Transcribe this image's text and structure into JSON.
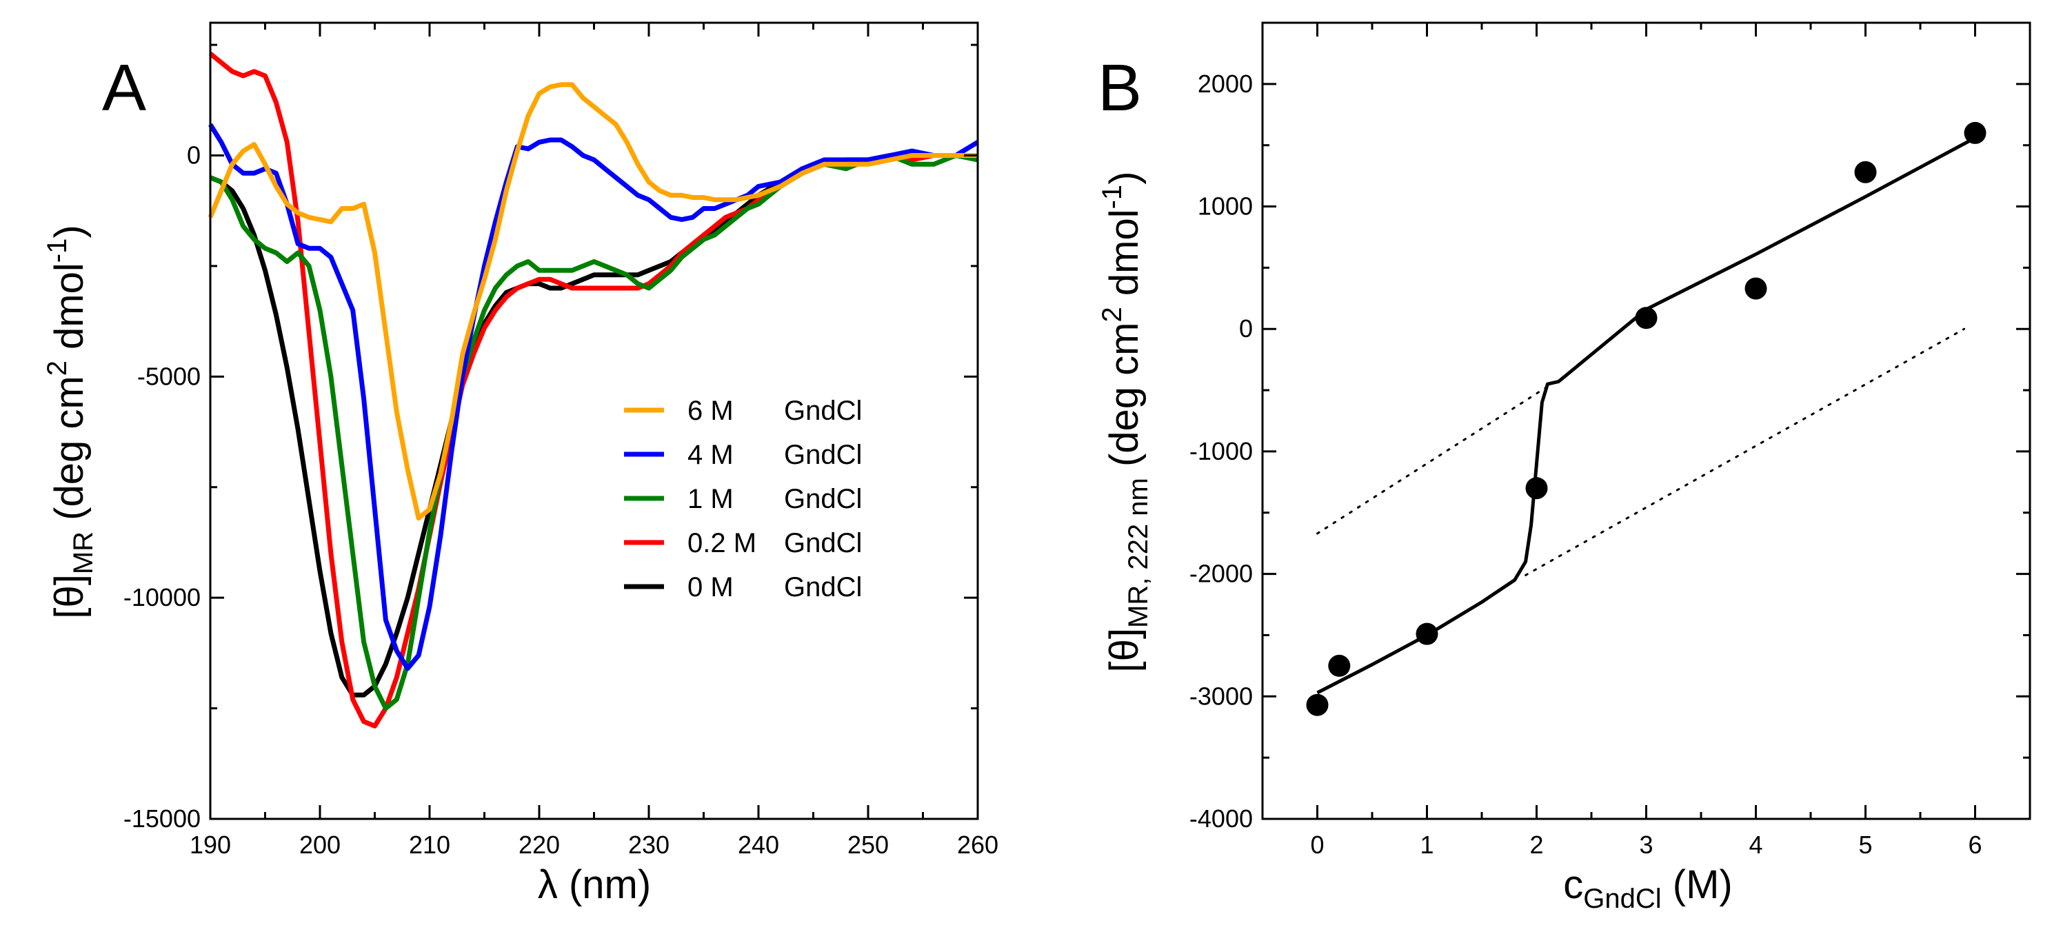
{
  "figure": {
    "panelA_letter": "A",
    "panelB_letter": "B"
  },
  "chart_data": [
    {
      "type": "line",
      "panel": "A",
      "title": "",
      "xlabel": "λ (nm)",
      "ylabel": {
        "main": "[θ]",
        "sub": "MR",
        "text": "(deg cm",
        "sup": "2",
        "text2": "dmol",
        "sup2": "-1",
        "text3": ")"
      },
      "xlim": [
        190,
        260
      ],
      "ylim": [
        -15000,
        3000
      ],
      "x_ticks": [
        190,
        200,
        210,
        220,
        230,
        240,
        250,
        260
      ],
      "y_ticks": [
        -15000,
        -10000,
        -5000,
        0
      ],
      "legend_position": "center-right",
      "series": [
        {
          "name": "6 M GndCl",
          "conc": "6 M",
          "denaturant": "GndCl",
          "color": "#ffa500",
          "x": [
            190,
            191,
            192,
            193,
            194,
            195,
            196,
            197,
            198,
            199,
            200,
            201,
            202,
            203,
            204,
            205,
            206,
            207,
            208,
            209,
            210,
            211,
            212,
            213,
            214,
            215,
            216,
            217,
            218,
            219,
            220,
            221,
            222,
            223,
            224,
            225,
            226,
            227,
            228,
            229,
            230,
            231,
            232,
            233,
            234,
            235,
            236,
            237,
            238,
            239,
            240,
            242,
            244,
            246,
            248,
            250,
            252,
            254,
            256,
            258,
            260
          ],
          "y": [
            -1400,
            -800,
            -200,
            100,
            250,
            -200,
            -700,
            -1100,
            -1300,
            -1400,
            -1450,
            -1500,
            -1200,
            -1200,
            -1100,
            -2200,
            -4000,
            -5800,
            -7100,
            -8200,
            -8000,
            -7200,
            -6000,
            -4500,
            -3600,
            -2800,
            -1900,
            -800,
            100,
            900,
            1400,
            1550,
            1600,
            1600,
            1300,
            1100,
            900,
            700,
            300,
            -200,
            -600,
            -800,
            -900,
            -900,
            -950,
            -950,
            -1000,
            -1000,
            -1000,
            -950,
            -900,
            -700,
            -400,
            -200,
            -200,
            -200,
            -100,
            0,
            0,
            0,
            0
          ]
        },
        {
          "name": "4 M GndCl",
          "conc": "4 M",
          "denaturant": "GndCl",
          "color": "#0000ff",
          "x": [
            190,
            191,
            192,
            193,
            194,
            195,
            196,
            197,
            198,
            199,
            200,
            201,
            202,
            203,
            204,
            205,
            206,
            207,
            208,
            209,
            210,
            211,
            212,
            213,
            214,
            215,
            216,
            217,
            218,
            219,
            220,
            221,
            222,
            223,
            224,
            225,
            226,
            227,
            228,
            229,
            230,
            231,
            232,
            233,
            234,
            235,
            236,
            237,
            238,
            239,
            240,
            242,
            244,
            246,
            248,
            250,
            252,
            254,
            256,
            258,
            260
          ],
          "y": [
            700,
            300,
            -200,
            -400,
            -400,
            -300,
            -400,
            -1100,
            -2000,
            -2100,
            -2100,
            -2300,
            -2900,
            -3500,
            -5500,
            -8000,
            -10500,
            -11200,
            -11600,
            -11300,
            -10200,
            -8600,
            -6700,
            -5000,
            -3700,
            -2500,
            -1500,
            -600,
            200,
            150,
            300,
            350,
            350,
            200,
            0,
            -100,
            -300,
            -500,
            -700,
            -900,
            -1000,
            -1200,
            -1400,
            -1450,
            -1400,
            -1200,
            -1200,
            -1100,
            -1000,
            -900,
            -700,
            -600,
            -300,
            -100,
            -100,
            -100,
            0,
            100,
            0,
            0,
            300
          ]
        },
        {
          "name": "1 M GndCl",
          "conc": "1 M",
          "denaturant": "GndCl",
          "color": "#008000",
          "x": [
            190,
            191,
            192,
            193,
            194,
            195,
            196,
            197,
            198,
            199,
            200,
            201,
            202,
            203,
            204,
            205,
            206,
            207,
            208,
            209,
            210,
            211,
            212,
            213,
            214,
            215,
            216,
            217,
            218,
            219,
            220,
            221,
            222,
            223,
            224,
            225,
            226,
            227,
            228,
            229,
            230,
            231,
            232,
            233,
            234,
            235,
            236,
            237,
            238,
            239,
            240,
            242,
            244,
            246,
            248,
            250,
            252,
            254,
            256,
            258,
            260
          ],
          "y": [
            -500,
            -600,
            -1000,
            -1600,
            -1900,
            -2100,
            -2200,
            -2400,
            -2200,
            -2500,
            -3500,
            -5000,
            -7000,
            -9000,
            -11000,
            -12000,
            -12500,
            -12300,
            -11500,
            -10000,
            -8500,
            -7200,
            -6000,
            -5000,
            -4200,
            -3500,
            -3000,
            -2700,
            -2500,
            -2400,
            -2600,
            -2600,
            -2600,
            -2600,
            -2500,
            -2400,
            -2500,
            -2600,
            -2700,
            -2900,
            -3000,
            -2800,
            -2600,
            -2300,
            -2100,
            -1900,
            -1800,
            -1600,
            -1400,
            -1200,
            -1100,
            -700,
            -400,
            -200,
            -300,
            -100,
            0,
            -200,
            -200,
            0,
            -100
          ]
        },
        {
          "name": "0.2 M GndCl",
          "conc": "0.2 M",
          "denaturant": "GndCl",
          "color": "#ff0000",
          "x": [
            190,
            191,
            192,
            193,
            194,
            195,
            196,
            197,
            198,
            199,
            200,
            201,
            202,
            203,
            204,
            205,
            206,
            207,
            208,
            209,
            210,
            211,
            212,
            213,
            214,
            215,
            216,
            217,
            218,
            219,
            220,
            221,
            222,
            223,
            224,
            225,
            226,
            227,
            228,
            229,
            230,
            231,
            232,
            233,
            234,
            235,
            236,
            237,
            238,
            239,
            240,
            242,
            244,
            246,
            248,
            250,
            252,
            254,
            256,
            258,
            260
          ],
          "y": [
            2300,
            2100,
            1900,
            1800,
            1900,
            1800,
            1200,
            300,
            -1500,
            -4000,
            -6500,
            -9000,
            -11000,
            -12300,
            -12800,
            -12900,
            -12500,
            -11800,
            -10800,
            -9800,
            -8600,
            -7400,
            -6300,
            -5200,
            -4500,
            -3900,
            -3500,
            -3200,
            -3000,
            -2900,
            -2800,
            -2800,
            -2900,
            -3000,
            -3000,
            -3000,
            -3000,
            -3000,
            -3000,
            -3000,
            -2900,
            -2700,
            -2500,
            -2200,
            -2000,
            -1800,
            -1600,
            -1400,
            -1300,
            -1200,
            -1000,
            -700,
            -400,
            -200,
            -200,
            -100,
            0,
            -100,
            0,
            0,
            0
          ]
        },
        {
          "name": "0 M GndCl",
          "conc": "0 M",
          "denaturant": "GndCl",
          "color": "#000000",
          "x": [
            190,
            191,
            192,
            193,
            194,
            195,
            196,
            197,
            198,
            199,
            200,
            201,
            202,
            203,
            204,
            205,
            206,
            207,
            208,
            209,
            210,
            211,
            212,
            213,
            214,
            215,
            216,
            217,
            218,
            219,
            220,
            221,
            222,
            223,
            224,
            225,
            226,
            227,
            228,
            229,
            230,
            231,
            232,
            233,
            234,
            235,
            236,
            237,
            238,
            239,
            240,
            242,
            244,
            246,
            248,
            250,
            252,
            254,
            256,
            258,
            260
          ],
          "y": [
            -500,
            -600,
            -800,
            -1200,
            -1800,
            -2600,
            -3600,
            -4800,
            -6200,
            -7800,
            -9400,
            -10800,
            -11800,
            -12200,
            -12200,
            -12000,
            -11500,
            -10800,
            -10000,
            -9000,
            -8000,
            -7000,
            -6000,
            -5000,
            -4300,
            -3800,
            -3400,
            -3100,
            -3000,
            -2900,
            -2900,
            -3000,
            -3000,
            -2900,
            -2800,
            -2700,
            -2700,
            -2700,
            -2700,
            -2700,
            -2600,
            -2500,
            -2400,
            -2200,
            -2100,
            -1900,
            -1700,
            -1500,
            -1300,
            -1100,
            -900,
            -600,
            -300,
            -200,
            -100,
            -100,
            0,
            0,
            0,
            0,
            0
          ]
        }
      ]
    },
    {
      "type": "scatter",
      "panel": "B",
      "title": "",
      "xlabel": {
        "main": "c",
        "sub": "GndCl",
        "text": "(M)"
      },
      "ylabel": {
        "main": "[θ]",
        "sub": "MR, 222 nm",
        "text": "(deg cm",
        "sup": "2",
        "text2": "dmol",
        "sup2": "-1",
        "text3": ")"
      },
      "xlim": [
        -0.5,
        6.5
      ],
      "ylim": [
        -4000,
        2500
      ],
      "x_ticks": [
        0,
        1,
        2,
        3,
        4,
        5,
        6
      ],
      "y_ticks": [
        -4000,
        -3000,
        -2000,
        -1000,
        0,
        1000,
        2000
      ],
      "points": {
        "x": [
          0,
          0.2,
          1,
          2,
          3,
          4,
          5,
          6
        ],
        "y": [
          -3070,
          -2750,
          -2490,
          -1300,
          90,
          330,
          1280,
          1600
        ]
      },
      "fit": {
        "x": [
          0,
          0.5,
          1,
          1.5,
          1.8,
          1.9,
          1.95,
          2.0,
          2.05,
          2.1,
          2.2,
          3,
          4,
          5,
          6
        ],
        "y": [
          -2970,
          -2740,
          -2500,
          -2230,
          -2050,
          -1900,
          -1600,
          -1100,
          -600,
          -450,
          -430,
          160,
          610,
          1080,
          1560
        ]
      },
      "baselines": [
        {
          "name": "native baseline",
          "style": "dotted",
          "x": [
            0,
            2.1
          ],
          "y": [
            -1670,
            -470
          ]
        },
        {
          "name": "denatured baseline",
          "style": "dotted",
          "x": [
            1.9,
            5.9
          ],
          "y": [
            -2010,
            0
          ]
        }
      ]
    }
  ]
}
